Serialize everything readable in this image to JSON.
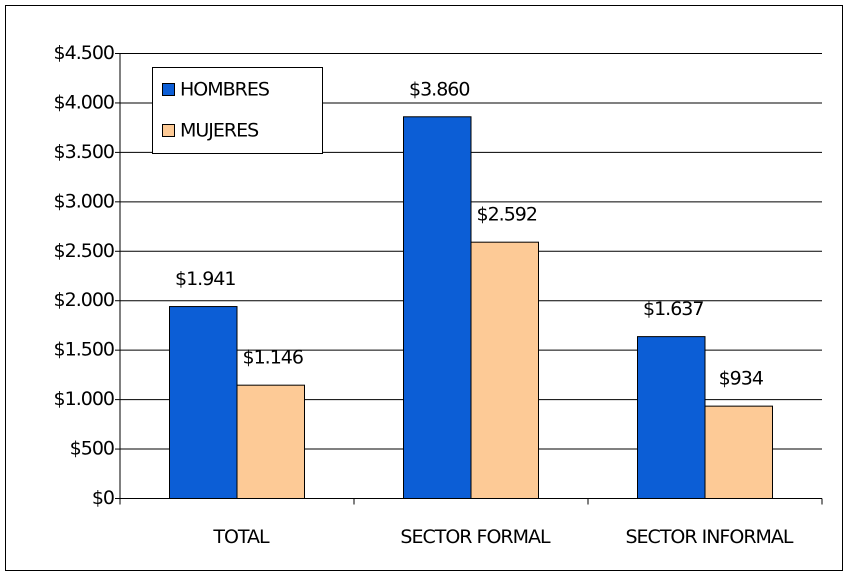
{
  "chart_data": {
    "type": "bar",
    "categories": [
      "TOTAL",
      "SECTOR FORMAL",
      "SECTOR INFORMAL"
    ],
    "series": [
      {
        "name": "HOMBRES",
        "color": "#0c5ed6",
        "values": [
          1941,
          3860,
          1637
        ],
        "value_labels": [
          "$1.941",
          "$3.860",
          "$1.637"
        ]
      },
      {
        "name": "MUJERES",
        "color": "#fdca96",
        "values": [
          1146,
          2592,
          934
        ],
        "value_labels": [
          "$1.146",
          "$2.592",
          "$934"
        ]
      }
    ],
    "ylim": [
      0,
      4500
    ],
    "yticks": [
      {
        "value": 0,
        "label": "$0"
      },
      {
        "value": 500,
        "label": "$500"
      },
      {
        "value": 1000,
        "label": "$1.000"
      },
      {
        "value": 1500,
        "label": "$1.500"
      },
      {
        "value": 2000,
        "label": "$2.000"
      },
      {
        "value": 2500,
        "label": "$2.500"
      },
      {
        "value": 3000,
        "label": "$3.000"
      },
      {
        "value": 3500,
        "label": "$3.500"
      },
      {
        "value": 4000,
        "label": "$4.000"
      },
      {
        "value": 4500,
        "label": "$4.500"
      }
    ],
    "grid": true,
    "legend": "top-left"
  }
}
